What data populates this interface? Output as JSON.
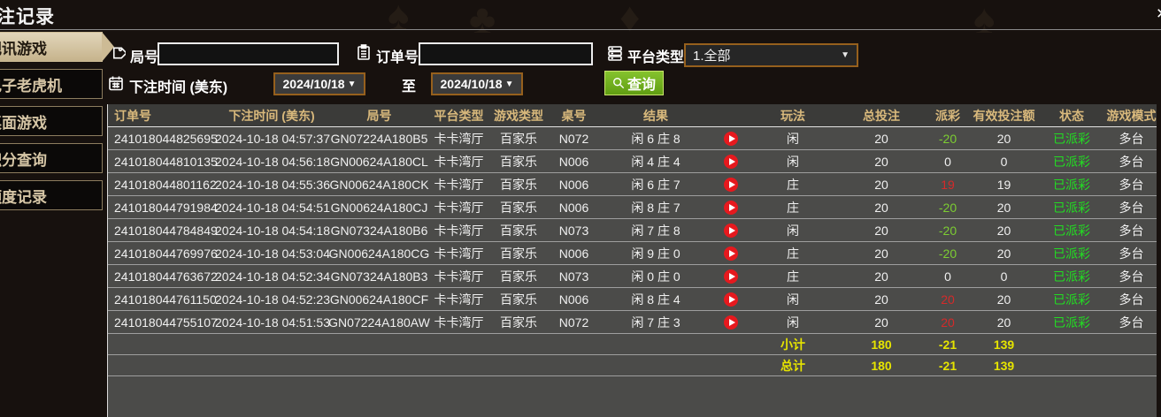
{
  "window": {
    "title": "投注记录",
    "close_glyph": "×"
  },
  "sidebar": {
    "items": [
      {
        "label": "视讯游戏",
        "active": true
      },
      {
        "label": "电子老虎机",
        "active": false
      },
      {
        "label": "桌面游戏",
        "active": false
      },
      {
        "label": "积分查询",
        "active": false
      },
      {
        "label": "额度记录",
        "active": false
      }
    ]
  },
  "filters": {
    "round_label": "局号",
    "round_value": "",
    "order_label": "订单号",
    "order_value": "",
    "platform_label": "平台类型",
    "platform_value": "1.全部",
    "dropdown_arrow": "▼",
    "bet_time_label": "下注时间 (美东)",
    "date_from": "2024/10/18",
    "date_to": "2024/10/18",
    "range_separator": "至",
    "query_label": "查询"
  },
  "table": {
    "headers": [
      "订单号",
      "下注时间 (美东)",
      "局号",
      "平台类型",
      "游戏类型",
      "桌号",
      "结果",
      "",
      "玩法",
      "总投注",
      "派彩",
      "有效投注额",
      "状态",
      "游戏模式"
    ],
    "rows": [
      {
        "order": "241018044825695",
        "time": "2024-10-18 04:57:37",
        "round": "GN07224A180B5",
        "platform": "卡卡湾厅",
        "game": "百家乐",
        "table_no": "N072",
        "result": "闲 6 庄 8",
        "play": "闲",
        "bet": "20",
        "payout": "-20",
        "payout_tone": "neg",
        "valid": "20",
        "status": "已派彩",
        "mode": "多台"
      },
      {
        "order": "241018044810135",
        "time": "2024-10-18 04:56:18",
        "round": "GN00624A180CL",
        "platform": "卡卡湾厅",
        "game": "百家乐",
        "table_no": "N006",
        "result": "闲 4 庄 4",
        "play": "闲",
        "bet": "20",
        "payout": "0",
        "payout_tone": "zero",
        "valid": "0",
        "status": "已派彩",
        "mode": "多台"
      },
      {
        "order": "241018044801162",
        "time": "2024-10-18 04:55:36",
        "round": "GN00624A180CK",
        "platform": "卡卡湾厅",
        "game": "百家乐",
        "table_no": "N006",
        "result": "闲 6 庄 7",
        "play": "庄",
        "bet": "20",
        "payout": "19",
        "payout_tone": "pos",
        "valid": "19",
        "status": "已派彩",
        "mode": "多台"
      },
      {
        "order": "241018044791984",
        "time": "2024-10-18 04:54:51",
        "round": "GN00624A180CJ",
        "platform": "卡卡湾厅",
        "game": "百家乐",
        "table_no": "N006",
        "result": "闲 8 庄 7",
        "play": "庄",
        "bet": "20",
        "payout": "-20",
        "payout_tone": "neg",
        "valid": "20",
        "status": "已派彩",
        "mode": "多台"
      },
      {
        "order": "241018044784849",
        "time": "2024-10-18 04:54:18",
        "round": "GN07324A180B6",
        "platform": "卡卡湾厅",
        "game": "百家乐",
        "table_no": "N073",
        "result": "闲 7 庄 8",
        "play": "闲",
        "bet": "20",
        "payout": "-20",
        "payout_tone": "neg",
        "valid": "20",
        "status": "已派彩",
        "mode": "多台"
      },
      {
        "order": "241018044769976",
        "time": "2024-10-18 04:53:04",
        "round": "GN00624A180CG",
        "platform": "卡卡湾厅",
        "game": "百家乐",
        "table_no": "N006",
        "result": "闲 9 庄 0",
        "play": "庄",
        "bet": "20",
        "payout": "-20",
        "payout_tone": "neg",
        "valid": "20",
        "status": "已派彩",
        "mode": "多台"
      },
      {
        "order": "241018044763672",
        "time": "2024-10-18 04:52:34",
        "round": "GN07324A180B3",
        "platform": "卡卡湾厅",
        "game": "百家乐",
        "table_no": "N073",
        "result": "闲 0 庄 0",
        "play": "庄",
        "bet": "20",
        "payout": "0",
        "payout_tone": "zero",
        "valid": "0",
        "status": "已派彩",
        "mode": "多台"
      },
      {
        "order": "241018044761150",
        "time": "2024-10-18 04:52:23",
        "round": "GN00624A180CF",
        "platform": "卡卡湾厅",
        "game": "百家乐",
        "table_no": "N006",
        "result": "闲 8 庄 4",
        "play": "闲",
        "bet": "20",
        "payout": "20",
        "payout_tone": "pos",
        "valid": "20",
        "status": "已派彩",
        "mode": "多台"
      },
      {
        "order": "241018044755107",
        "time": "2024-10-18 04:51:53",
        "round": "GN07224A180AW",
        "platform": "卡卡湾厅",
        "game": "百家乐",
        "table_no": "N072",
        "result": "闲 7 庄 3",
        "play": "闲",
        "bet": "20",
        "payout": "20",
        "payout_tone": "pos",
        "valid": "20",
        "status": "已派彩",
        "mode": "多台"
      }
    ],
    "subtotal": {
      "label": "小计",
      "bet": "180",
      "payout": "-21",
      "valid": "139"
    },
    "total": {
      "label": "总计",
      "bet": "180",
      "payout": "-21",
      "valid": "139"
    }
  },
  "colors": {
    "accent_tan": "#d3c2a0",
    "header_gold": "#d9b97c",
    "status_green": "#22dd22",
    "payout_negative_green": "#7ccd32",
    "payout_positive_red": "#d42a2a",
    "totals_yellow": "#e6e400",
    "button_green": "#6fae1f",
    "date_border_orange": "#96601d",
    "row_bg": "#4b4b49",
    "header_bg": "#3b3b39"
  }
}
